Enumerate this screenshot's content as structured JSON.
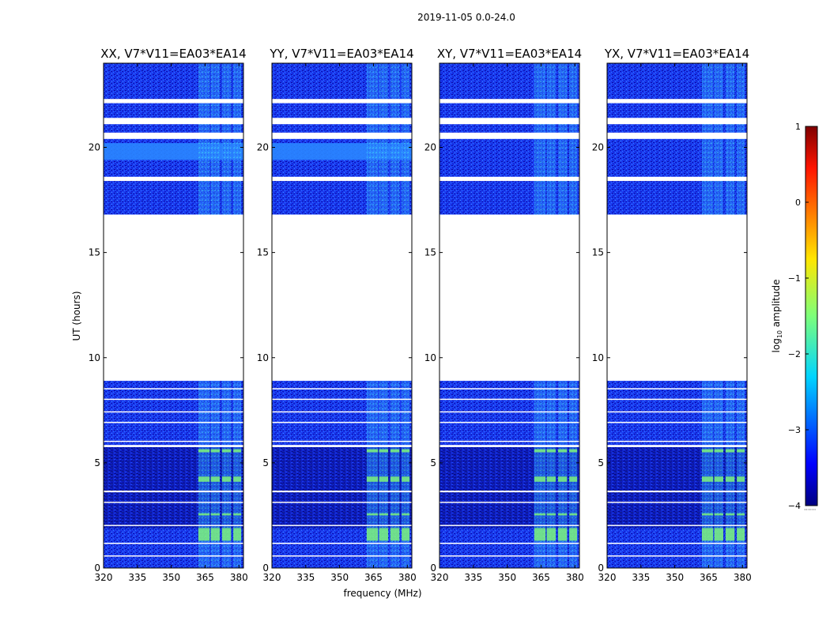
{
  "chart_data": {
    "type": "heatmap",
    "suptitle": "2019-11-05 0.0-24.0",
    "xlabel": "frequency (MHz)",
    "ylabel": "UT (hours)",
    "x_range_mhz": [
      320,
      382
    ],
    "y_range_hours": [
      0,
      24
    ],
    "x_ticks": [
      "320",
      "335",
      "350",
      "365",
      "380"
    ],
    "y_ticks": [
      "0",
      "5",
      "10",
      "15",
      "20"
    ],
    "panels": [
      {
        "title": "XX, V7*V11=EA03*EA14",
        "polarization": "XX"
      },
      {
        "title": "YY, V7*V11=EA03*EA14",
        "polarization": "YY"
      },
      {
        "title": "XY, V7*V11=EA03*EA14",
        "polarization": "XY"
      },
      {
        "title": "YX, V7*V11=EA03*EA14",
        "polarization": "YX"
      }
    ],
    "data_time_ranges_hours": [
      [
        0,
        8.9
      ],
      [
        16.8,
        24.0
      ]
    ],
    "gap_hours": [
      [
        8.9,
        16.8
      ],
      [
        20.4,
        20.7
      ],
      [
        18.4,
        18.6
      ],
      [
        21.1,
        21.4
      ],
      [
        22.1,
        22.3
      ],
      [
        0.55,
        0.6
      ],
      [
        1.15,
        1.2
      ],
      [
        2.0,
        2.05
      ],
      [
        3.1,
        3.15
      ],
      [
        3.6,
        3.68
      ],
      [
        5.75,
        5.85
      ],
      [
        6.0,
        6.05
      ],
      [
        6.9,
        6.95
      ],
      [
        7.4,
        7.45
      ],
      [
        8.0,
        8.05
      ],
      [
        8.5,
        8.55
      ]
    ],
    "strong_rfi_mhz": [
      [
        362,
        367
      ],
      [
        367.5,
        371.5
      ],
      [
        372.5,
        376.5
      ],
      [
        377.5,
        381
      ]
    ],
    "bright_times_hours": [
      [
        1.3,
        1.9
      ],
      [
        4.1,
        4.35
      ],
      [
        5.5,
        5.65
      ],
      [
        2.5,
        2.6
      ]
    ],
    "colorbar": {
      "label_prefix": "log",
      "label_sub": "10",
      "label_suffix": " amplitude",
      "min": -4,
      "max": 1,
      "ticks": [
        "1",
        "0",
        "−1",
        "−2",
        "−3",
        "−4"
      ],
      "colormap": "jet",
      "dots": "······"
    }
  }
}
